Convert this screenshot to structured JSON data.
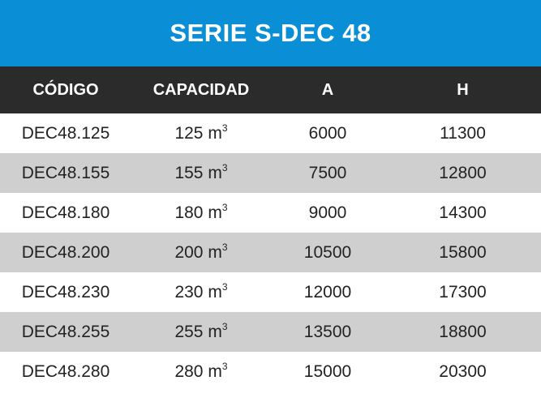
{
  "table": {
    "title": "SERIE S-DEC 48",
    "headers": [
      "CÓDIGO",
      "CAPACIDAD",
      "A",
      "H"
    ],
    "unit": "m",
    "unit_exponent": "3",
    "rows": [
      {
        "codigo": "DEC48.125",
        "capacidad": "125",
        "a": "6000",
        "h": "11300"
      },
      {
        "codigo": "DEC48.155",
        "capacidad": "155",
        "a": "7500",
        "h": "12800"
      },
      {
        "codigo": "DEC48.180",
        "capacidad": "180",
        "a": "9000",
        "h": "14300"
      },
      {
        "codigo": "DEC48.200",
        "capacidad": "200",
        "a": "10500",
        "h": "15800"
      },
      {
        "codigo": "DEC48.230",
        "capacidad": "230",
        "a": "12000",
        "h": "17300"
      },
      {
        "codigo": "DEC48.255",
        "capacidad": "255",
        "a": "13500",
        "h": "18800"
      },
      {
        "codigo": "DEC48.280",
        "capacidad": "280",
        "a": "15000",
        "h": "20300"
      }
    ]
  },
  "colors": {
    "title_bg": "#0a8fd6",
    "header_bg": "#2b2b2b",
    "shaded_row_bg": "#cfcfcf"
  }
}
